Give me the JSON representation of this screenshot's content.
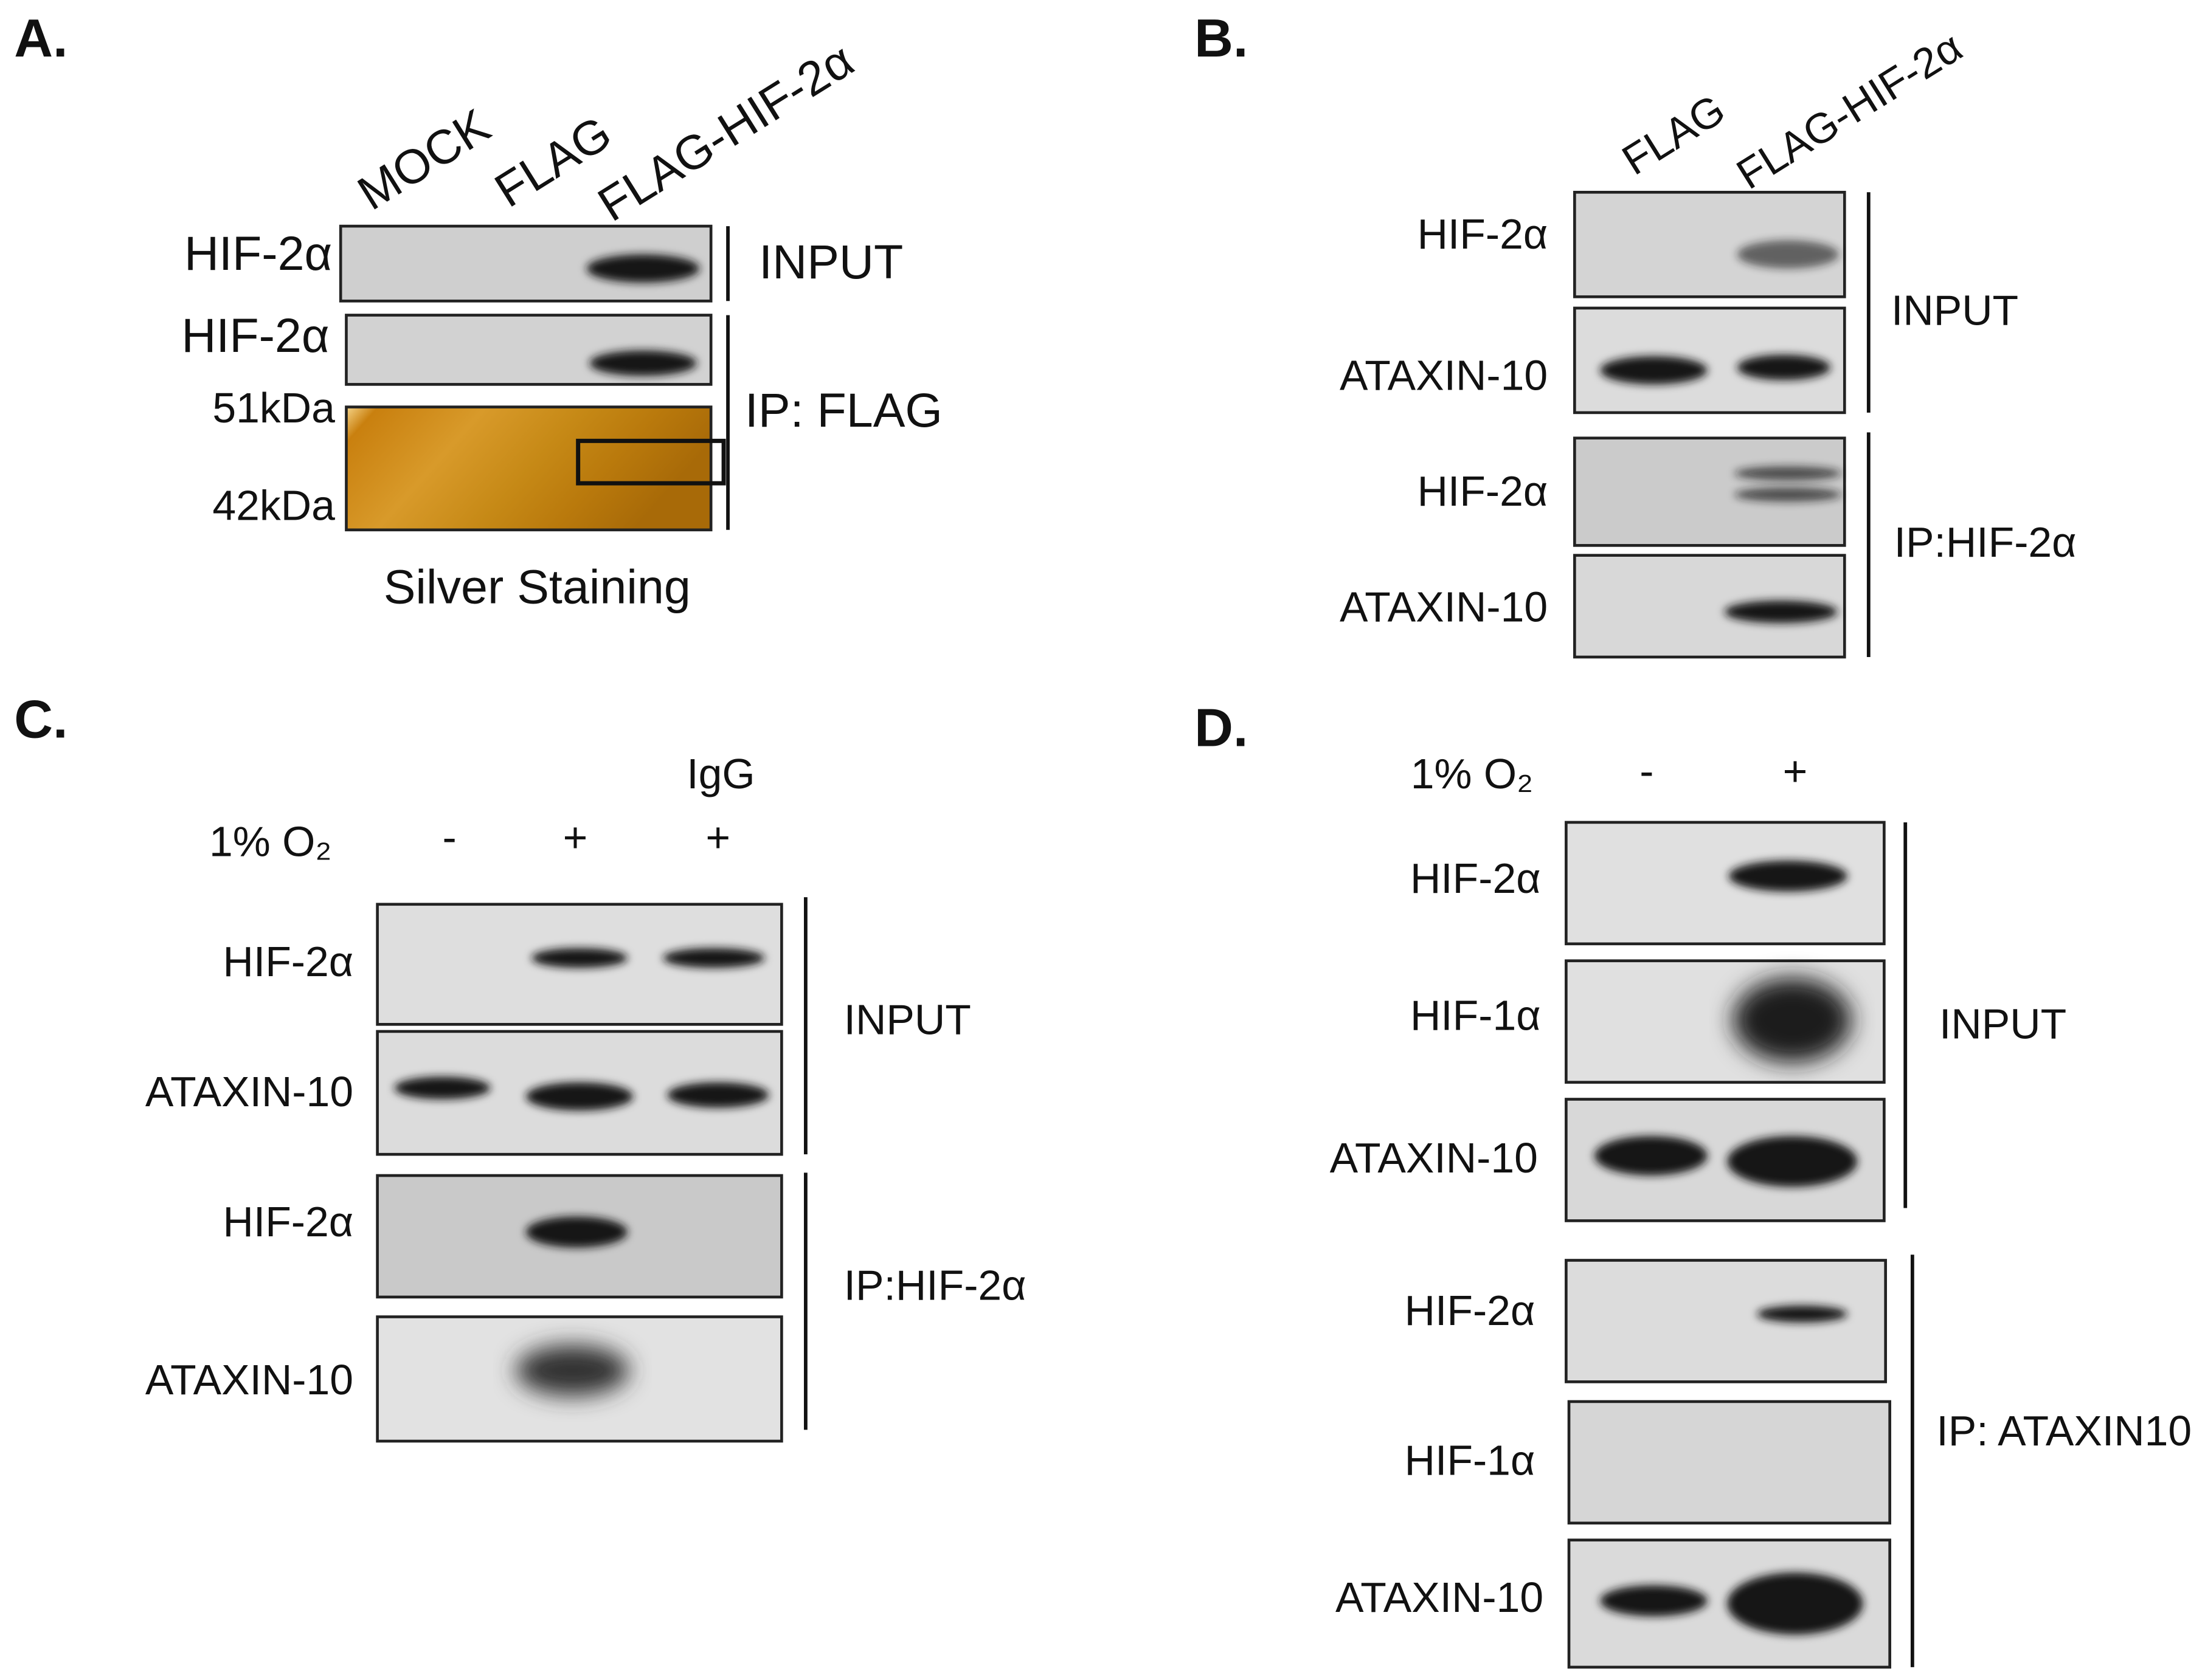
{
  "panels": [
    {
      "label": "A.",
      "lanes": [
        "MOCK",
        "FLAG",
        "FLAG-HIF-2α"
      ],
      "blots": [
        "HIF-2α",
        "HIF-2α"
      ],
      "markers": [
        "51kDa",
        "42kDa"
      ],
      "groups": [
        "INPUT",
        "IP: FLAG"
      ],
      "caption": "Silver Staining"
    },
    {
      "label": "B.",
      "lanes": [
        "FLAG",
        "FLAG-HIF-2α"
      ],
      "blots": [
        "HIF-2α",
        "ATAXIN-10",
        "HIF-2α",
        "ATAXIN-10"
      ],
      "groups": [
        "INPUT",
        "IP:HIF-2α"
      ]
    },
    {
      "label": "C.",
      "antibody_label": "IgG",
      "condition": "1% O₂",
      "conditions": [
        "-",
        "+",
        "+"
      ],
      "blots": [
        "HIF-2α",
        "ATAXIN-10",
        "HIF-2α",
        "ATAXIN-10"
      ],
      "groups": [
        "INPUT",
        "IP:HIF-2α"
      ]
    },
    {
      "label": "D.",
      "condition": "1% O₂",
      "conditions": [
        "-",
        "+"
      ],
      "blots": [
        "HIF-2α",
        "HIF-1α",
        "ATAXIN-10",
        "HIF-2α",
        "HIF-1α",
        "ATAXIN-10"
      ],
      "groups": [
        "INPUT",
        "IP: ATAXIN10"
      ]
    }
  ]
}
